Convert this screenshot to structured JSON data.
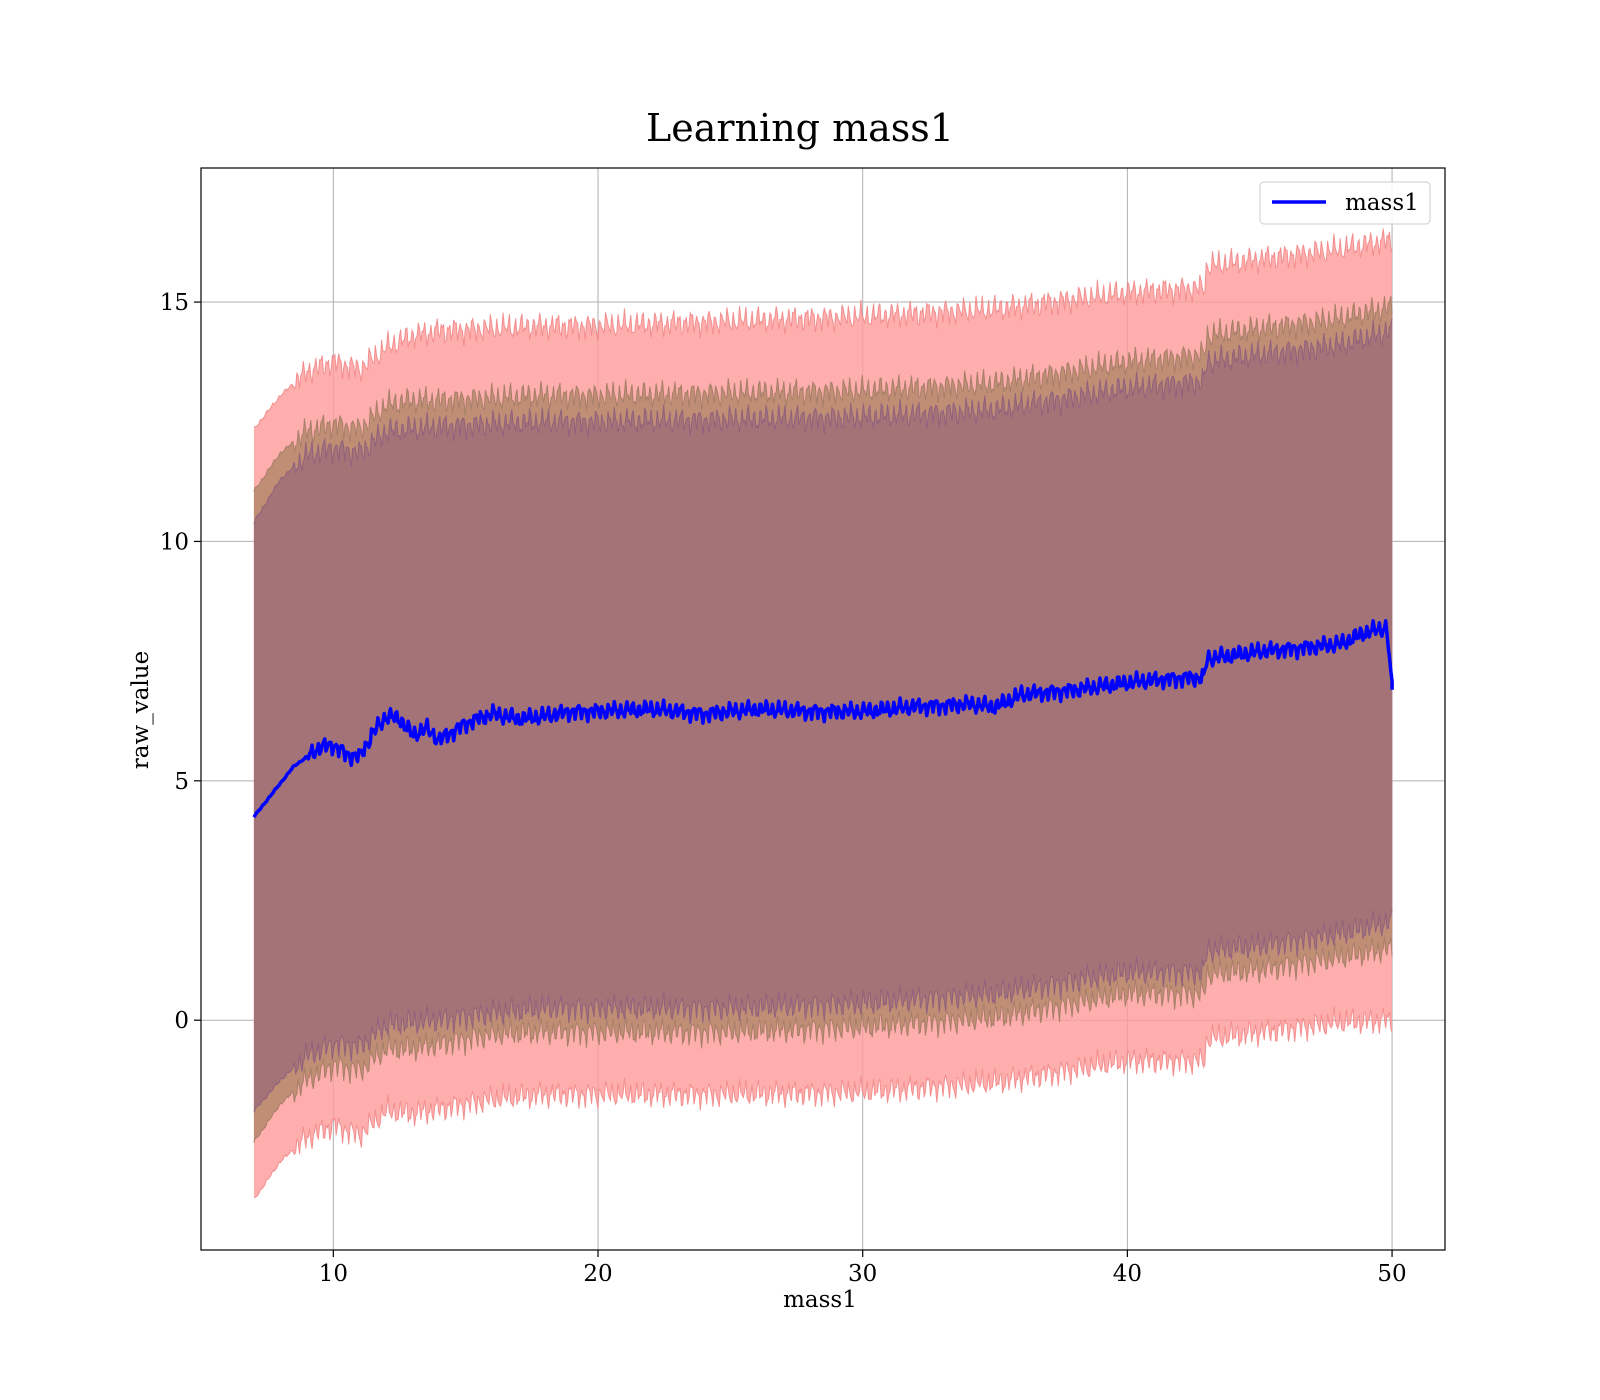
{
  "chart_data": {
    "type": "line",
    "title": "Learning mass1",
    "xlabel": "mass1",
    "ylabel": "raw_value",
    "xlim": [
      5,
      52
    ],
    "ylim": [
      -4.8,
      17.8
    ],
    "xticks": [
      10,
      20,
      30,
      40,
      50
    ],
    "yticks": [
      0,
      5,
      10,
      15
    ],
    "grid": true,
    "legend_position": "top-right",
    "colors": {
      "line": "#0000ff",
      "band_outer": "#ff9a9a",
      "band_middle": "#b5886b",
      "band_inner": "#a07078",
      "outer_edge": "#f07e7e",
      "middle_edge": "#9a7860",
      "inner_edge": "#8a5a80"
    },
    "series": [
      {
        "name": "mass1",
        "x": [
          7,
          7.5,
          8,
          8.5,
          9,
          9.5,
          10,
          10.5,
          11,
          11.5,
          12,
          12.5,
          13,
          13.5,
          14,
          15,
          16,
          17,
          18,
          19,
          20,
          22,
          24,
          26,
          28,
          30,
          32,
          34,
          35,
          36,
          38,
          40,
          42,
          42.9,
          43,
          45,
          47,
          48,
          49,
          49.8,
          50
        ],
        "y": [
          4.25,
          4.6,
          4.95,
          5.3,
          5.5,
          5.7,
          5.75,
          5.55,
          5.5,
          6.0,
          6.35,
          6.3,
          5.95,
          6.1,
          5.85,
          6.2,
          6.4,
          6.3,
          6.35,
          6.45,
          6.45,
          6.5,
          6.4,
          6.5,
          6.45,
          6.45,
          6.55,
          6.6,
          6.55,
          6.8,
          6.9,
          7.05,
          7.15,
          7.15,
          7.55,
          7.7,
          7.8,
          7.85,
          8.1,
          8.2,
          6.9
        ]
      }
    ],
    "bands": [
      {
        "x": [
          7,
          8,
          9,
          10,
          11,
          12,
          13,
          14,
          16,
          18,
          20,
          25,
          30,
          35,
          40,
          42.9,
          43,
          45,
          48,
          50
        ],
        "upper": [
          12.35,
          13.05,
          13.55,
          13.75,
          13.6,
          14.05,
          14.3,
          14.4,
          14.45,
          14.5,
          14.5,
          14.6,
          14.7,
          14.85,
          15.2,
          15.3,
          15.75,
          15.9,
          16.1,
          16.3
        ],
        "lower": [
          -3.75,
          -2.95,
          -2.45,
          -2.2,
          -2.4,
          -1.9,
          -1.95,
          -1.85,
          -1.65,
          -1.55,
          -1.55,
          -1.55,
          -1.5,
          -1.3,
          -0.85,
          -0.85,
          -0.4,
          -0.25,
          -0.05,
          0.0
        ]
      },
      {
        "x": [
          7,
          8,
          9,
          10,
          11,
          12,
          13,
          14,
          16,
          18,
          20,
          25,
          30,
          35,
          40,
          42.9,
          43,
          45,
          48,
          50
        ],
        "upper": [
          11.05,
          11.85,
          12.3,
          12.45,
          12.35,
          12.85,
          12.95,
          12.95,
          13.0,
          13.05,
          13.05,
          13.1,
          13.15,
          13.3,
          13.75,
          13.9,
          14.3,
          14.45,
          14.65,
          14.9
        ],
        "lower": [
          -2.55,
          -1.75,
          -1.25,
          -0.95,
          -1.05,
          -0.6,
          -0.6,
          -0.5,
          -0.3,
          -0.25,
          -0.25,
          -0.25,
          -0.15,
          0.05,
          0.55,
          0.55,
          0.95,
          1.05,
          1.3,
          1.5
        ]
      },
      {
        "x": [
          7,
          8,
          9,
          10,
          11,
          12,
          13,
          14,
          16,
          18,
          20,
          25,
          30,
          35,
          40,
          42.9,
          43,
          45,
          48,
          50
        ],
        "upper": [
          10.4,
          11.3,
          11.8,
          11.95,
          11.85,
          12.3,
          12.35,
          12.4,
          12.45,
          12.5,
          12.5,
          12.55,
          12.6,
          12.75,
          13.2,
          13.35,
          13.75,
          13.9,
          14.1,
          14.4
        ],
        "lower": [
          -1.9,
          -1.25,
          -0.75,
          -0.5,
          -0.55,
          -0.1,
          -0.05,
          0.0,
          0.15,
          0.25,
          0.25,
          0.25,
          0.35,
          0.55,
          1.0,
          1.0,
          1.45,
          1.55,
          1.8,
          2.05
        ]
      }
    ]
  }
}
